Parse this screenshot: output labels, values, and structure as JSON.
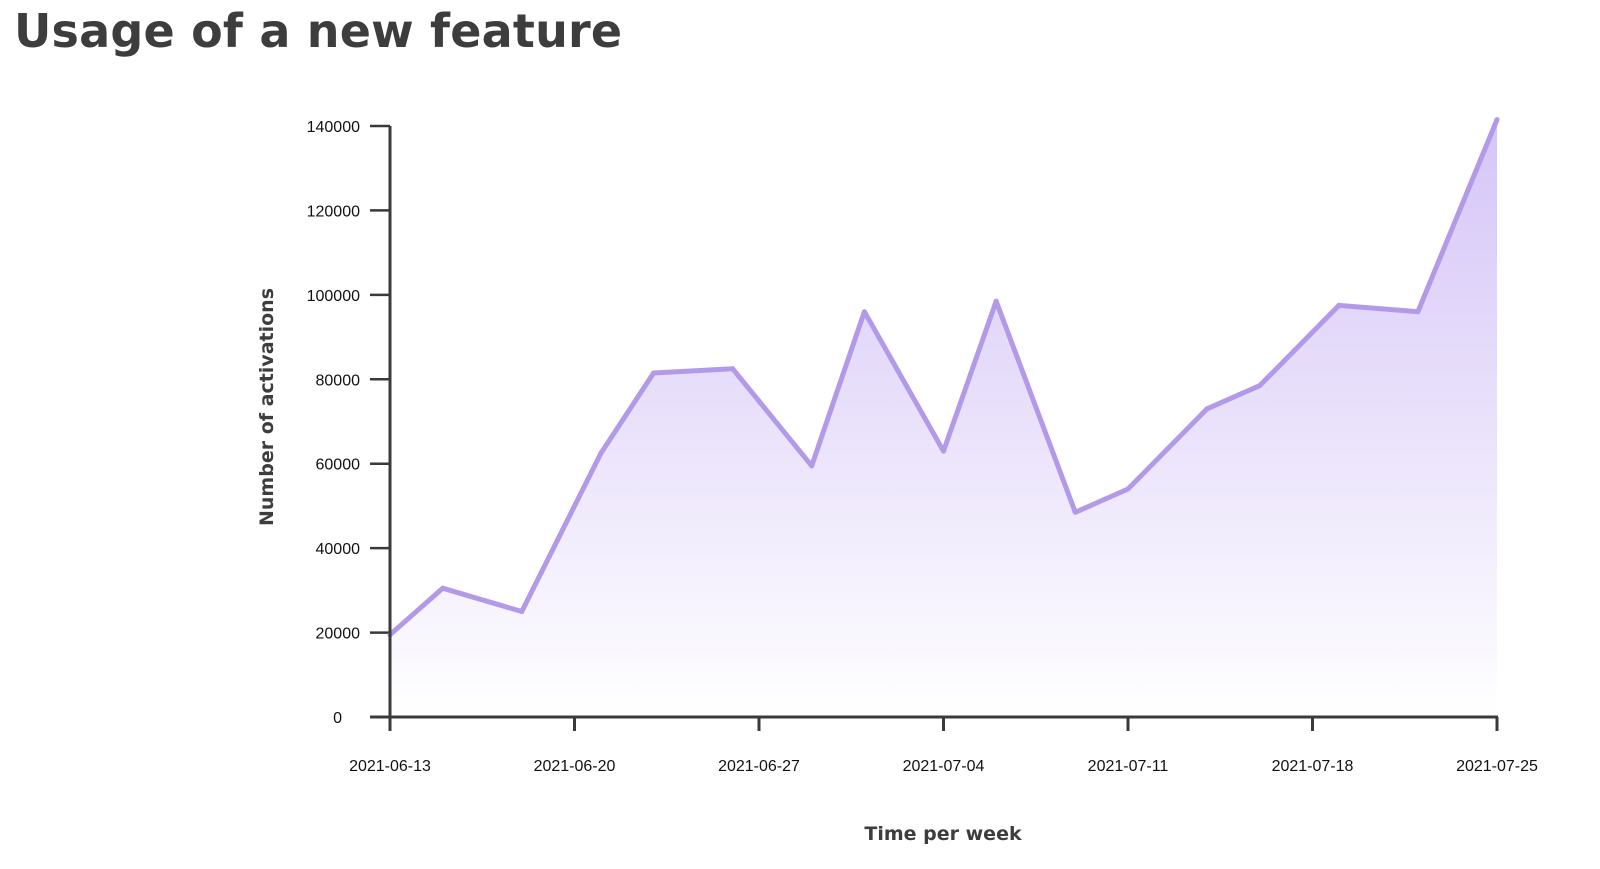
{
  "title": "Usage of a new feature",
  "colors": {
    "line": "#b39ae9",
    "fill_top": "#d3c2f7",
    "fill_bottom": "#ffffff",
    "axis": "#3a3a3a",
    "title": "#3d3d3d"
  },
  "chart_data": {
    "type": "area",
    "title": "Usage of a new feature",
    "xlabel": "Time per week",
    "ylabel": "Number of activations",
    "ylim": [
      0,
      140000
    ],
    "yticks": [
      0,
      20000,
      40000,
      60000,
      80000,
      100000,
      120000,
      140000
    ],
    "xlim": [
      "2021-06-13",
      "2021-07-25"
    ],
    "xticks": [
      "2021-06-13",
      "2021-06-20",
      "2021-06-27",
      "2021-07-04",
      "2021-07-11",
      "2021-07-18",
      "2021-07-25"
    ],
    "grid": false,
    "legend": "none",
    "series": [
      {
        "x": [
          "2021-06-13",
          "2021-06-15",
          "2021-06-18",
          "2021-06-21",
          "2021-06-23",
          "2021-06-26",
          "2021-06-29",
          "2021-07-01",
          "2021-07-04",
          "2021-07-06",
          "2021-07-09",
          "2021-07-11",
          "2021-07-14",
          "2021-07-16",
          "2021-07-19",
          "2021-07-22",
          "2021-07-25"
        ],
        "values": [
          19500,
          30500,
          25000,
          62500,
          81500,
          82500,
          59500,
          96000,
          63000,
          98500,
          48500,
          54000,
          73000,
          78500,
          97500,
          96000,
          141500
        ]
      }
    ]
  }
}
